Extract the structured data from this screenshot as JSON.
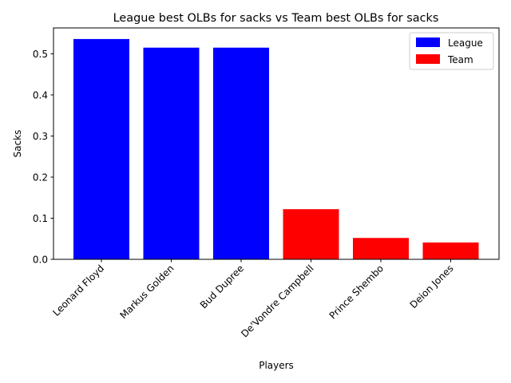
{
  "chart_data": {
    "type": "bar",
    "title": "League best OLBs for sacks vs Team best OLBs for sacks",
    "xlabel": "Players",
    "ylabel": "Sacks",
    "categories": [
      "Leonard Floyd",
      "Markus Golden",
      "Bud Dupree",
      "De'Vondre Campbell",
      "Prince Shembo",
      "Deion Jones"
    ],
    "values": [
      0.536,
      0.515,
      0.515,
      0.122,
      0.052,
      0.041
    ],
    "bar_groups": [
      "League",
      "League",
      "League",
      "Team",
      "Team",
      "Team"
    ],
    "legend": [
      {
        "name": "League",
        "color": "#0000ff"
      },
      {
        "name": "Team",
        "color": "#ff0000"
      }
    ],
    "legend_position": "top-right",
    "yticks": [
      "0.0",
      "0.1",
      "0.2",
      "0.3",
      "0.4",
      "0.5"
    ],
    "ylim": [
      0,
      0.563
    ],
    "grid": false
  }
}
